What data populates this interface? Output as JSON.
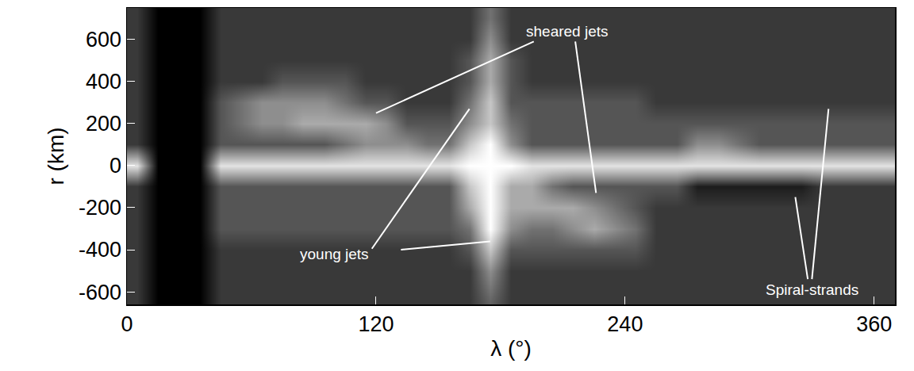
{
  "chart_data": {
    "type": "heatmap",
    "xlabel": "λ (°)",
    "ylabel": "r (km)",
    "xlim": [
      0,
      370
    ],
    "ylim": [
      -660,
      750
    ],
    "xticks": [
      0,
      120,
      240,
      360
    ],
    "yticks": [
      -600,
      -400,
      -200,
      0,
      200,
      400,
      600
    ],
    "zlim": [
      0,
      9
    ],
    "x": [
      5,
      15,
      25,
      35,
      45,
      55,
      65,
      75,
      85,
      95,
      105,
      115,
      125,
      135,
      145,
      155,
      165,
      175,
      185,
      195,
      205,
      215,
      225,
      235,
      245,
      255,
      265,
      275,
      285,
      295,
      305,
      315,
      325,
      335,
      345,
      355,
      365
    ],
    "y": [
      -700,
      -600,
      -500,
      -400,
      -300,
      -200,
      -100,
      0,
      100,
      200,
      300,
      400,
      500,
      600,
      700
    ],
    "z": [
      [
        2,
        0,
        0,
        0,
        2,
        2,
        2,
        2,
        2,
        2,
        2,
        2,
        2,
        2,
        2,
        2,
        2,
        3,
        2,
        2,
        2,
        2,
        2,
        2,
        2,
        2,
        2,
        2,
        2,
        2,
        2,
        2,
        2,
        2,
        2,
        2,
        2
      ],
      [
        2,
        0,
        0,
        0,
        2,
        2,
        2,
        2,
        2,
        2,
        2,
        2,
        2,
        2,
        2,
        2,
        2,
        4,
        2,
        2,
        2,
        2,
        2,
        2,
        2,
        2,
        2,
        2,
        2,
        2,
        2,
        2,
        2,
        2,
        2,
        2,
        2
      ],
      [
        2,
        0,
        0,
        0,
        2,
        2,
        2,
        2,
        2,
        2,
        2,
        2,
        2,
        2,
        2,
        2,
        2,
        5,
        2,
        2,
        2,
        2,
        2,
        2,
        2,
        2,
        2,
        2,
        2,
        2,
        2,
        2,
        2,
        2,
        2,
        2,
        2
      ],
      [
        2,
        0,
        0,
        0,
        2,
        2,
        2,
        2,
        2,
        2,
        2,
        2,
        2,
        2,
        2,
        2,
        3,
        7,
        3,
        3,
        3,
        3,
        3,
        3,
        3,
        2,
        2,
        2,
        2,
        2,
        2,
        2,
        2,
        2,
        2,
        2,
        2
      ],
      [
        2,
        0,
        0,
        0,
        3,
        3,
        3,
        3,
        3,
        3,
        3,
        3,
        3,
        3,
        3,
        3,
        4,
        9,
        5,
        4,
        4,
        5,
        6,
        5,
        4,
        2,
        2,
        2,
        2,
        2,
        2,
        2,
        2,
        2,
        2,
        2,
        2
      ],
      [
        2,
        0,
        0,
        0,
        3,
        3,
        3,
        3,
        3,
        3,
        3,
        3,
        3,
        3,
        3,
        3,
        6,
        9,
        6,
        6,
        6,
        6,
        5,
        4,
        3,
        2,
        2,
        2,
        2,
        2,
        2,
        2,
        2,
        2,
        2,
        2,
        2
      ],
      [
        2,
        0,
        0,
        0,
        3,
        3,
        3,
        3,
        3,
        3,
        3,
        3,
        3,
        3,
        3,
        3,
        7,
        9,
        6,
        6,
        4,
        3,
        3,
        3,
        3,
        3,
        3,
        1,
        1,
        1,
        1,
        1,
        1,
        2,
        2,
        2,
        2
      ],
      [
        8,
        0,
        0,
        0,
        8,
        8,
        8,
        8,
        8,
        8,
        8,
        8,
        8,
        8,
        8,
        8,
        9,
        9,
        9,
        8,
        8,
        8,
        8,
        8,
        8,
        8,
        8,
        8,
        8,
        8,
        8,
        8,
        8,
        8,
        8,
        8,
        8
      ],
      [
        2,
        0,
        0,
        0,
        3,
        3,
        3,
        3,
        3,
        3,
        4,
        5,
        5,
        5,
        4,
        4,
        7,
        9,
        5,
        3,
        3,
        3,
        3,
        3,
        3,
        3,
        3,
        5,
        5,
        4,
        3,
        3,
        3,
        3,
        3,
        3,
        3
      ],
      [
        2,
        0,
        0,
        0,
        3,
        4,
        5,
        5,
        6,
        6,
        6,
        6,
        5,
        3,
        3,
        3,
        5,
        7,
        4,
        3,
        3,
        3,
        3,
        3,
        3,
        3,
        3,
        3,
        3,
        3,
        3,
        3,
        3,
        3,
        3,
        3,
        3
      ],
      [
        2,
        0,
        0,
        0,
        3,
        4,
        5,
        5,
        5,
        5,
        4,
        3,
        3,
        2,
        2,
        2,
        4,
        7,
        3,
        3,
        3,
        3,
        3,
        3,
        3,
        2,
        2,
        2,
        2,
        2,
        2,
        2,
        2,
        2,
        2,
        2,
        2
      ],
      [
        2,
        0,
        0,
        0,
        2,
        2,
        2,
        3,
        3,
        3,
        3,
        2,
        2,
        2,
        2,
        2,
        3,
        6,
        3,
        2,
        2,
        2,
        2,
        2,
        2,
        2,
        2,
        2,
        2,
        2,
        2,
        2,
        2,
        2,
        2,
        2,
        2
      ],
      [
        2,
        0,
        0,
        0,
        2,
        2,
        2,
        2,
        2,
        2,
        2,
        2,
        2,
        2,
        2,
        2,
        3,
        6,
        3,
        2,
        2,
        2,
        2,
        2,
        2,
        2,
        2,
        2,
        2,
        2,
        2,
        2,
        2,
        2,
        2,
        2,
        2
      ],
      [
        2,
        0,
        0,
        0,
        2,
        2,
        2,
        2,
        2,
        2,
        2,
        2,
        2,
        2,
        2,
        2,
        2,
        5,
        2,
        2,
        2,
        2,
        2,
        2,
        2,
        2,
        2,
        2,
        2,
        2,
        2,
        2,
        2,
        2,
        2,
        2,
        2
      ],
      [
        2,
        0,
        0,
        0,
        2,
        2,
        2,
        2,
        2,
        2,
        2,
        2,
        2,
        2,
        2,
        2,
        2,
        4,
        2,
        2,
        2,
        2,
        2,
        2,
        2,
        2,
        2,
        2,
        2,
        2,
        2,
        2,
        2,
        2,
        2,
        2,
        2
      ]
    ],
    "annotations": [
      "sheared jets",
      "young jets",
      "Spiral-strands"
    ]
  }
}
